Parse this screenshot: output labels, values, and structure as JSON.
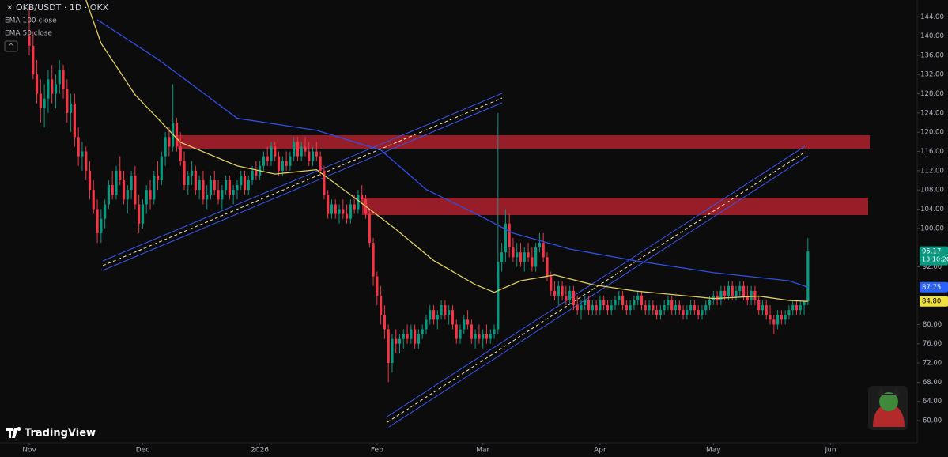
{
  "chart_data": {
    "type": "candlestick",
    "title": "OKB/USDT · 1D · OKX",
    "brand": "TradingView",
    "up_color": "#089981",
    "down_color": "#f23645",
    "candles": [
      [
        140,
        146,
        136,
        138
      ],
      [
        138,
        141,
        131,
        132
      ],
      [
        132,
        135,
        126,
        128
      ],
      [
        128,
        131,
        122,
        125
      ],
      [
        125,
        130,
        121,
        127
      ],
      [
        127,
        133,
        124,
        131
      ],
      [
        131,
        134,
        126,
        128
      ],
      [
        128,
        132,
        125,
        130
      ],
      [
        130,
        135,
        128,
        133
      ],
      [
        133,
        134,
        127,
        129
      ],
      [
        129,
        131,
        122,
        124
      ],
      [
        124,
        128,
        120,
        126
      ],
      [
        126,
        128,
        117,
        119
      ],
      [
        119,
        121,
        113,
        115
      ],
      [
        115,
        118,
        112,
        116
      ],
      [
        116,
        117,
        110,
        112
      ],
      [
        112,
        114,
        106,
        108
      ],
      [
        108,
        110,
        103,
        104
      ],
      [
        104,
        106,
        97,
        99
      ],
      [
        99,
        104,
        97,
        102
      ],
      [
        102,
        106,
        100,
        105
      ],
      [
        105,
        110,
        104,
        109
      ],
      [
        109,
        112,
        106,
        107
      ],
      [
        107,
        113,
        106,
        112
      ],
      [
        112,
        115,
        109,
        110
      ],
      [
        110,
        112,
        105,
        106
      ],
      [
        106,
        109,
        103,
        108
      ],
      [
        108,
        112,
        106,
        111
      ],
      [
        111,
        113,
        104,
        105
      ],
      [
        105,
        107,
        99,
        101
      ],
      [
        101,
        106,
        100,
        105
      ],
      [
        105,
        109,
        103,
        108
      ],
      [
        108,
        110,
        104,
        106
      ],
      [
        106,
        112,
        105,
        111
      ],
      [
        111,
        114,
        108,
        110
      ],
      [
        110,
        116,
        109,
        115
      ],
      [
        115,
        120,
        113,
        119
      ],
      [
        119,
        121,
        115,
        117
      ],
      [
        117,
        130,
        116,
        122
      ],
      [
        122,
        123,
        116,
        117
      ],
      [
        117,
        120,
        113,
        114
      ],
      [
        114,
        116,
        108,
        109
      ],
      [
        109,
        112,
        107,
        111
      ],
      [
        111,
        114,
        109,
        112
      ],
      [
        112,
        113,
        107,
        108
      ],
      [
        108,
        111,
        106,
        110
      ],
      [
        110,
        112,
        105,
        106
      ],
      [
        106,
        109,
        104,
        107
      ],
      [
        107,
        111,
        106,
        110
      ],
      [
        110,
        112,
        107,
        108
      ],
      [
        108,
        110,
        105,
        106
      ],
      [
        106,
        109,
        104,
        108
      ],
      [
        108,
        111,
        107,
        110
      ],
      [
        110,
        111,
        106,
        107
      ],
      [
        107,
        109,
        105,
        108
      ],
      [
        108,
        110,
        106,
        109
      ],
      [
        109,
        112,
        108,
        111
      ],
      [
        111,
        112,
        107,
        108
      ],
      [
        108,
        111,
        107,
        110
      ],
      [
        110,
        113,
        109,
        112
      ],
      [
        112,
        114,
        110,
        111
      ],
      [
        111,
        114,
        110,
        113
      ],
      [
        113,
        116,
        112,
        115
      ],
      [
        115,
        117,
        113,
        114
      ],
      [
        114,
        118,
        113,
        117
      ],
      [
        117,
        118,
        114,
        115
      ],
      [
        115,
        116,
        111,
        112
      ],
      [
        112,
        115,
        111,
        114
      ],
      [
        114,
        116,
        112,
        113
      ],
      [
        113,
        116,
        112,
        115
      ],
      [
        115,
        119,
        114,
        118
      ],
      [
        118,
        119,
        114,
        115
      ],
      [
        115,
        118,
        114,
        117
      ],
      [
        117,
        119,
        115,
        116
      ],
      [
        116,
        118,
        113,
        114
      ],
      [
        114,
        117,
        113,
        116
      ],
      [
        116,
        118,
        114,
        115
      ],
      [
        115,
        116,
        111,
        112
      ],
      [
        112,
        113,
        106,
        107
      ],
      [
        107,
        108,
        102,
        103
      ],
      [
        103,
        106,
        102,
        105
      ],
      [
        105,
        106,
        102,
        103
      ],
      [
        103,
        105,
        101,
        104
      ],
      [
        104,
        106,
        102,
        103
      ],
      [
        103,
        105,
        101,
        102
      ],
      [
        102,
        106,
        101,
        105
      ],
      [
        105,
        107,
        103,
        104
      ],
      [
        104,
        108,
        103,
        107
      ],
      [
        107,
        109,
        105,
        106
      ],
      [
        106,
        107,
        102,
        103
      ],
      [
        103,
        104,
        96,
        97
      ],
      [
        97,
        98,
        88,
        90
      ],
      [
        90,
        91,
        84,
        86
      ],
      [
        86,
        88,
        80,
        82
      ],
      [
        82,
        84,
        77,
        79
      ],
      [
        79,
        80,
        68,
        72
      ],
      [
        72,
        78,
        70,
        77
      ],
      [
        77,
        79,
        74,
        76
      ],
      [
        76,
        78,
        74,
        77
      ],
      [
        77,
        79,
        75,
        78
      ],
      [
        78,
        80,
        76,
        77
      ],
      [
        77,
        80,
        76,
        79
      ],
      [
        79,
        80,
        75,
        76
      ],
      [
        76,
        79,
        75,
        78
      ],
      [
        78,
        80,
        77,
        79
      ],
      [
        79,
        82,
        78,
        81
      ],
      [
        81,
        84,
        80,
        83
      ],
      [
        83,
        84,
        80,
        81
      ],
      [
        81,
        83,
        79,
        82
      ],
      [
        82,
        85,
        81,
        84
      ],
      [
        84,
        85,
        81,
        82
      ],
      [
        82,
        84,
        80,
        83
      ],
      [
        83,
        84,
        79,
        80
      ],
      [
        80,
        81,
        76,
        77
      ],
      [
        77,
        80,
        76,
        79
      ],
      [
        79,
        82,
        78,
        81
      ],
      [
        81,
        83,
        79,
        80
      ],
      [
        80,
        81,
        76,
        77
      ],
      [
        77,
        79,
        75,
        78
      ],
      [
        78,
        80,
        76,
        77
      ],
      [
        77,
        79,
        75,
        78
      ],
      [
        78,
        80,
        76,
        77
      ],
      [
        77,
        79,
        76,
        78
      ],
      [
        78,
        80,
        77,
        79
      ],
      [
        79,
        124,
        78,
        93
      ],
      [
        93,
        97,
        91,
        95
      ],
      [
        95,
        104,
        93,
        101
      ],
      [
        101,
        103,
        94,
        96
      ],
      [
        96,
        98,
        93,
        94
      ],
      [
        94,
        97,
        92,
        95
      ],
      [
        95,
        97,
        92,
        93
      ],
      [
        93,
        96,
        91,
        95
      ],
      [
        95,
        97,
        93,
        94
      ],
      [
        94,
        96,
        91,
        92
      ],
      [
        92,
        97,
        91,
        96
      ],
      [
        96,
        99,
        95,
        97
      ],
      [
        97,
        99,
        93,
        94
      ],
      [
        94,
        95,
        89,
        90
      ],
      [
        90,
        91,
        86,
        87
      ],
      [
        87,
        89,
        85,
        86
      ],
      [
        86,
        89,
        84,
        88
      ],
      [
        88,
        89,
        85,
        86
      ],
      [
        86,
        88,
        84,
        85
      ],
      [
        85,
        88,
        84,
        87
      ],
      [
        87,
        88,
        83,
        84
      ],
      [
        84,
        86,
        82,
        83
      ],
      [
        83,
        85,
        81,
        84
      ],
      [
        84,
        86,
        83,
        85
      ],
      [
        85,
        86,
        82,
        83
      ],
      [
        83,
        85,
        82,
        84
      ],
      [
        84,
        85,
        82,
        83
      ],
      [
        83,
        86,
        82,
        85
      ],
      [
        85,
        86,
        83,
        84
      ],
      [
        84,
        85,
        82,
        83
      ],
      [
        83,
        85,
        82,
        84
      ],
      [
        84,
        86,
        83,
        85
      ],
      [
        85,
        87,
        84,
        86
      ],
      [
        86,
        87,
        83,
        84
      ],
      [
        84,
        85,
        82,
        83
      ],
      [
        83,
        85,
        82,
        84
      ],
      [
        84,
        86,
        83,
        85
      ],
      [
        85,
        87,
        84,
        86
      ],
      [
        86,
        87,
        83,
        84
      ],
      [
        84,
        85,
        82,
        83
      ],
      [
        83,
        85,
        82,
        84
      ],
      [
        84,
        85,
        82,
        83
      ],
      [
        83,
        84,
        81,
        82
      ],
      [
        82,
        84,
        81,
        83
      ],
      [
        83,
        85,
        82,
        84
      ],
      [
        84,
        86,
        83,
        85
      ],
      [
        85,
        86,
        82,
        83
      ],
      [
        83,
        85,
        82,
        84
      ],
      [
        84,
        85,
        82,
        83
      ],
      [
        83,
        84,
        81,
        82
      ],
      [
        82,
        84,
        81,
        83
      ],
      [
        83,
        85,
        82,
        84
      ],
      [
        84,
        85,
        82,
        83
      ],
      [
        83,
        84,
        81,
        82
      ],
      [
        82,
        84,
        81,
        83
      ],
      [
        83,
        85,
        82,
        84
      ],
      [
        84,
        86,
        83,
        85
      ],
      [
        85,
        87,
        84,
        86
      ],
      [
        86,
        87,
        84,
        85
      ],
      [
        85,
        88,
        84,
        87
      ],
      [
        87,
        88,
        85,
        86
      ],
      [
        86,
        89,
        85,
        88
      ],
      [
        88,
        89,
        85,
        86
      ],
      [
        86,
        88,
        85,
        87
      ],
      [
        87,
        89,
        86,
        88
      ],
      [
        88,
        89,
        85,
        86
      ],
      [
        86,
        88,
        84,
        85
      ],
      [
        85,
        88,
        84,
        87
      ],
      [
        87,
        88,
        84,
        85
      ],
      [
        85,
        86,
        82,
        83
      ],
      [
        83,
        85,
        82,
        84
      ],
      [
        84,
        85,
        81,
        82
      ],
      [
        82,
        84,
        80,
        81
      ],
      [
        81,
        82,
        78,
        80
      ],
      [
        80,
        83,
        79,
        82
      ],
      [
        82,
        83,
        80,
        81
      ],
      [
        81,
        83,
        80,
        82
      ],
      [
        82,
        84,
        81,
        83
      ],
      [
        83,
        85,
        82,
        84
      ],
      [
        84,
        85,
        82,
        83
      ],
      [
        83,
        85,
        82,
        84
      ],
      [
        84,
        85,
        82,
        84.8
      ],
      [
        84.8,
        98,
        84,
        95.17
      ]
    ],
    "series": [
      {
        "name": "EMA 100 close",
        "color": "#2f4fe0",
        "x": [
          18,
          34,
          55,
          76,
          93,
          105,
          118,
          128,
          143,
          160,
          181,
          201,
          206
        ],
        "values": [
          143.4,
          135.2,
          122.9,
          120.4,
          116.3,
          108.1,
          103.1,
          99,
          95.7,
          93.3,
          90.8,
          89.1,
          87.75
        ]
      },
      {
        "name": "EMA 50 close",
        "color": "#e3cf63",
        "x": [
          15,
          19,
          28,
          40,
          55,
          65,
          76,
          86,
          97,
          107,
          118,
          123,
          130,
          139,
          149,
          160,
          181,
          193,
          201,
          206
        ],
        "values": [
          147.5,
          138.5,
          127.8,
          117.9,
          113,
          111.3,
          112.2,
          106.4,
          99.8,
          93.3,
          88.3,
          86.7,
          89.1,
          90.3,
          88.3,
          87,
          85.4,
          85.9,
          85,
          84.8
        ]
      }
    ],
    "price_tags": [
      {
        "value": 95.17,
        "label": "95.17",
        "color": "#089981",
        "text_color": "#ffffff",
        "countdown": "13:10:26"
      },
      {
        "value": 87.75,
        "label": "87.75",
        "color": "#2962ff",
        "text_color": "#ffffff"
      },
      {
        "value": 84.8,
        "label": "84.80",
        "color": "#f0e040",
        "text_color": "#000000"
      }
    ],
    "ylim": [
      55.4,
      147.5
    ],
    "yticks": [
      {
        "value": 60,
        "label": "60.00"
      },
      {
        "value": 64,
        "label": "64.00"
      },
      {
        "value": 68,
        "label": "68.00"
      },
      {
        "value": 72,
        "label": "72.00"
      },
      {
        "value": 76,
        "label": "76.00"
      },
      {
        "value": 80,
        "label": "80.00"
      },
      {
        "value": 92,
        "label": "92.00"
      },
      {
        "value": 100,
        "label": "100.00"
      },
      {
        "value": 104,
        "label": "104.00"
      },
      {
        "value": 108,
        "label": "108.00"
      },
      {
        "value": 112,
        "label": "112.00"
      },
      {
        "value": 116,
        "label": "116.00"
      },
      {
        "value": 120,
        "label": "120.00"
      },
      {
        "value": 124,
        "label": "124.00"
      },
      {
        "value": 128,
        "label": "128.00"
      },
      {
        "value": 132,
        "label": "132.00"
      },
      {
        "value": 136,
        "label": "136.00"
      },
      {
        "value": 140,
        "label": "140.00"
      },
      {
        "value": 144,
        "label": "144.00"
      }
    ],
    "xlim": [
      -7.74,
      234.9
    ],
    "xticks": [
      {
        "value": 0,
        "label": "Nov"
      },
      {
        "value": 30,
        "label": "Dec"
      },
      {
        "value": 61,
        "label": "2026"
      },
      {
        "value": 92,
        "label": "Feb"
      },
      {
        "value": 120,
        "label": "Mar"
      },
      {
        "value": 151,
        "label": "Apr"
      },
      {
        "value": 181,
        "label": "May"
      },
      {
        "value": 212,
        "label": "Jun"
      }
    ],
    "grid": false
  }
}
